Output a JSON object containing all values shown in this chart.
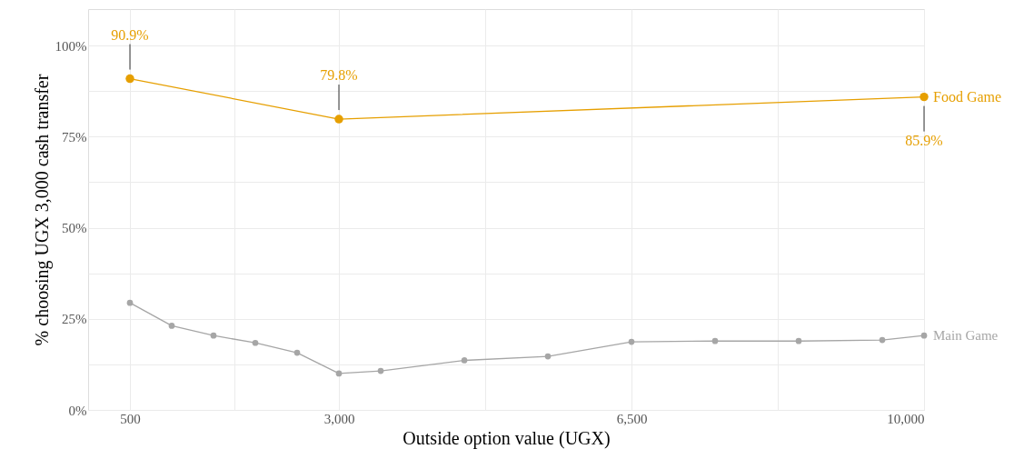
{
  "chart_data": {
    "type": "line",
    "xlabel": "Outside option value (UGX)",
    "ylabel": "% choosing UGX 3,000 cash transfer",
    "xlim": [
      0,
      10000
    ],
    "xticks": [
      500,
      {
        "value": 1750,
        "label": null
      },
      {
        "value": 3000,
        "label": "3,000"
      },
      {
        "value": 4750,
        "label": null
      },
      {
        "value": 6500,
        "label": "6,500"
      },
      {
        "value": 8250,
        "label": null
      },
      {
        "value": 10000,
        "label": "10,000"
      }
    ],
    "ylim": [
      0,
      110
    ],
    "yticks": [
      {
        "value": 0,
        "label": "0%"
      },
      {
        "value": 12.5,
        "label": null
      },
      {
        "value": 25,
        "label": "25%"
      },
      {
        "value": 37.5,
        "label": null
      },
      {
        "value": 50,
        "label": "50%"
      },
      {
        "value": 62.5,
        "label": null
      },
      {
        "value": 75,
        "label": "75%"
      },
      {
        "value": 87.5,
        "label": null
      },
      {
        "value": 100,
        "label": "100%"
      }
    ],
    "grid": true,
    "legend": false,
    "marker": "circle",
    "line_style": "solid",
    "series": [
      {
        "name": "Food Game",
        "color": "#e69f00",
        "x": [
          500,
          3000,
          10000
        ],
        "values": [
          90.9,
          79.8,
          85.9
        ],
        "value_labels": [
          "90.9%",
          "79.8%",
          "85.9%"
        ]
      },
      {
        "name": "Main Game",
        "color": "#a6a6a6",
        "x": [
          500,
          1000,
          1500,
          2000,
          2500,
          3000,
          3500,
          4500,
          5500,
          6500,
          7500,
          8500,
          9500,
          10000
        ],
        "values": [
          29.4,
          23.1,
          20.4,
          18.4,
          15.7,
          10.0,
          10.7,
          13.6,
          14.7,
          18.7,
          18.9,
          18.9,
          19.2,
          20.4
        ]
      }
    ]
  }
}
